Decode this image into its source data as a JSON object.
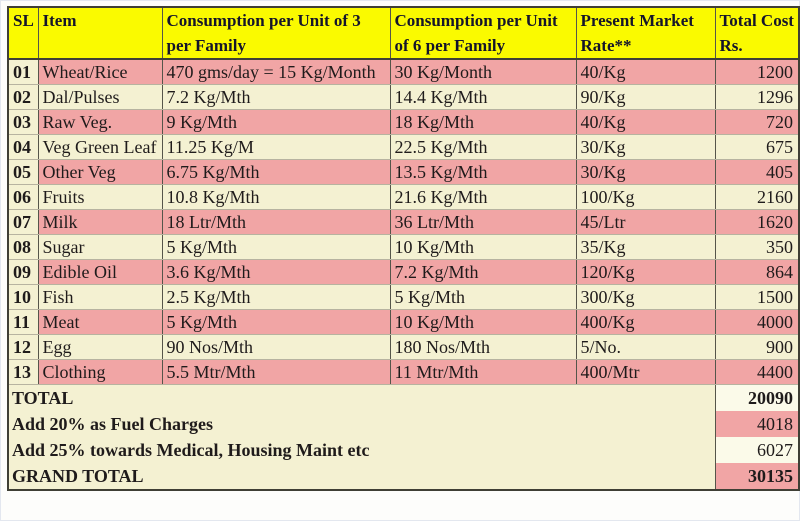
{
  "table": {
    "columns": [
      {
        "key": "sl",
        "label": "SL"
      },
      {
        "key": "item",
        "label": "Item"
      },
      {
        "key": "cons3",
        "label": "Consumption per Unit of 3 per Family"
      },
      {
        "key": "cons6",
        "label": "Consumption per Unit of 6 per Family"
      },
      {
        "key": "rate",
        "label": "Present Market Rate**"
      },
      {
        "key": "cost",
        "label": "Total Cost Rs."
      }
    ],
    "rows": [
      {
        "sl": "01",
        "item": "Wheat/Rice",
        "cons3": "470 gms/day = 15 Kg/Month",
        "cons6": "30 Kg/Month",
        "rate": "40/Kg",
        "cost": "1200",
        "highlight": true
      },
      {
        "sl": "02",
        "item": "Dal/Pulses",
        "cons3": "7.2 Kg/Mth",
        "cons6": "14.4 Kg/Mth",
        "rate": "90/Kg",
        "cost": "1296",
        "highlight": false
      },
      {
        "sl": "03",
        "item": "Raw Veg.",
        "cons3": "9 Kg/Mth",
        "cons6": "18 Kg/Mth",
        "rate": "40/Kg",
        "cost": "720",
        "highlight": true
      },
      {
        "sl": "04",
        "item": "Veg Green Leaf",
        "cons3": "11.25 Kg/M",
        "cons6": "22.5 Kg/Mth",
        "rate": "30/Kg",
        "cost": "675",
        "highlight": false
      },
      {
        "sl": "05",
        "item": "Other Veg",
        "cons3": "6.75 Kg/Mth",
        "cons6": "13.5 Kg/Mth",
        "rate": "30/Kg",
        "cost": "405",
        "highlight": true
      },
      {
        "sl": "06",
        "item": "Fruits",
        "cons3": "10.8 Kg/Mth",
        "cons6": "21.6 Kg/Mth",
        "rate": "100/Kg",
        "cost": "2160",
        "highlight": false
      },
      {
        "sl": "07",
        "item": "Milk",
        "cons3": "18 Ltr/Mth",
        "cons6": "36 Ltr/Mth",
        "rate": "45/Ltr",
        "cost": "1620",
        "highlight": true
      },
      {
        "sl": "08",
        "item": "Sugar",
        "cons3": "5 Kg/Mth",
        "cons6": "10 Kg/Mth",
        "rate": "35/Kg",
        "cost": "350",
        "highlight": false
      },
      {
        "sl": "09",
        "item": "Edible Oil",
        "cons3": "3.6 Kg/Mth",
        "cons6": "7.2 Kg/Mth",
        "rate": "120/Kg",
        "cost": "864",
        "highlight": true
      },
      {
        "sl": "10",
        "item": "Fish",
        "cons3": "2.5 Kg/Mth",
        "cons6": "5 Kg/Mth",
        "rate": "300/Kg",
        "cost": "1500",
        "highlight": false
      },
      {
        "sl": "11",
        "item": "Meat",
        "cons3": "5 Kg/Mth",
        "cons6": "10 Kg/Mth",
        "rate": "400/Kg",
        "cost": "4000",
        "highlight": true
      },
      {
        "sl": "12",
        "item": "Egg",
        "cons3": "90 Nos/Mth",
        "cons6": "180 Nos/Mth",
        "rate": "5/No.",
        "cost": "900",
        "highlight": false
      },
      {
        "sl": "13",
        "item": "Clothing",
        "cons3": "5.5 Mtr/Mth",
        "cons6": "11 Mtr/Mth",
        "rate": "400/Mtr",
        "cost": "4400",
        "highlight": true
      }
    ],
    "summary": [
      {
        "label": "TOTAL",
        "value": "20090",
        "bold_value": true,
        "value_highlight": false
      },
      {
        "label": "Add 20% as Fuel Charges",
        "value": "4018",
        "bold_value": false,
        "value_highlight": true
      },
      {
        "label": "Add 25% towards Medical, Housing Maint  etc",
        "value": "6027",
        "bold_value": false,
        "value_highlight": false
      },
      {
        "label": "GRAND TOTAL",
        "value": "30135",
        "bold_value": true,
        "value_highlight": true
      }
    ]
  },
  "colors": {
    "header_bg": "#FAFA00",
    "row_pink": "#F1A5A5",
    "row_cream": "#F4F1D2",
    "summary_pale": "#FBFAE9",
    "border_dark": "#3F3F35",
    "text": "#1F1B1B"
  }
}
